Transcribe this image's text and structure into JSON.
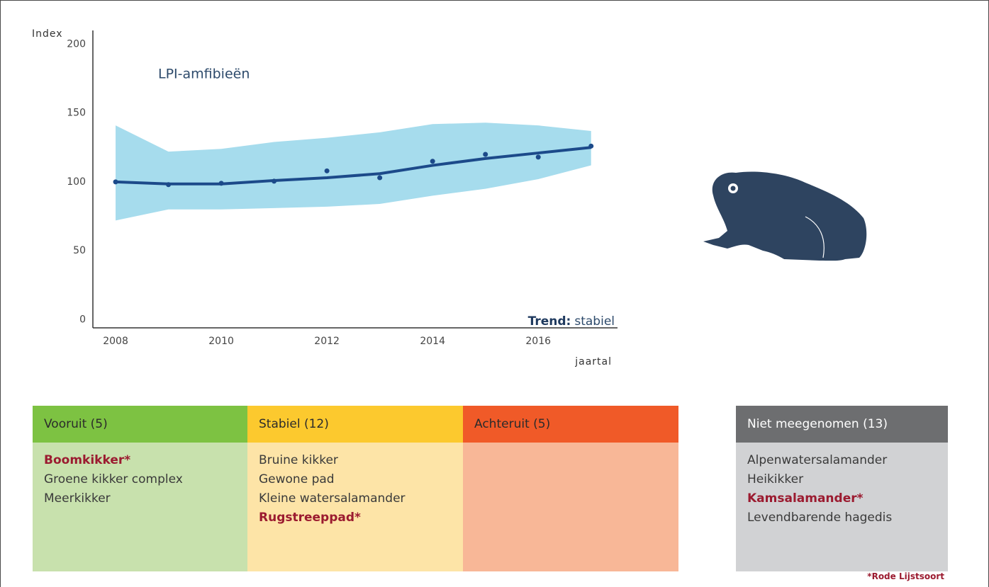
{
  "chart_data": {
    "type": "line_band",
    "title": "LPI-amfibieën",
    "y_label": "Index",
    "x_label": "jaartal",
    "annotation_label": "Trend:",
    "annotation_value": "stabiel",
    "x": [
      2008,
      2009,
      2010,
      2011,
      2012,
      2013,
      2014,
      2015,
      2016,
      2017
    ],
    "values": [
      100,
      98,
      99,
      100.5,
      108,
      103,
      115,
      120,
      118,
      126
    ],
    "trend": [
      100,
      98.5,
      98.5,
      101,
      103,
      106,
      112,
      117,
      121,
      125
    ],
    "band_lower": [
      72,
      80,
      80,
      81,
      82,
      84,
      90,
      95,
      102,
      112
    ],
    "band_upper": [
      141,
      122,
      124,
      129,
      132,
      136,
      142,
      143,
      141,
      137
    ],
    "line_color": "#1c4a8a",
    "band_color": "#a6dced",
    "xlim": [
      2007.57,
      2017.5
    ],
    "xticks": [
      2008,
      2010,
      2012,
      2014,
      2016
    ],
    "ylim": [
      -6,
      210
    ],
    "yticks": [
      0,
      50,
      100,
      150,
      200
    ]
  },
  "columns": [
    {
      "header": "Vooruit (5)",
      "items": [
        {
          "text": "Boomkikker*",
          "red_list": true
        },
        {
          "text": "Groene kikker complex",
          "red_list": false
        },
        {
          "text": "Meerkikker",
          "red_list": false
        }
      ]
    },
    {
      "header": "Stabiel (12)",
      "items": [
        {
          "text": "Bruine kikker",
          "red_list": false
        },
        {
          "text": "Gewone pad",
          "red_list": false
        },
        {
          "text": "Kleine watersalamander",
          "red_list": false
        },
        {
          "text": "Rugstreeppad*",
          "red_list": true
        }
      ]
    },
    {
      "header": "Achteruit (5)",
      "items": []
    },
    {
      "header": "Niet meegenomen (13)",
      "items": [
        {
          "text": "Alpenwatersalamander",
          "red_list": false
        },
        {
          "text": "Heikikker",
          "red_list": false
        },
        {
          "text": "Kamsalamander*",
          "red_list": true
        },
        {
          "text": "Levendbarende hagedis",
          "red_list": false
        }
      ]
    }
  ],
  "footnote": "*Rode Lijstsoort"
}
